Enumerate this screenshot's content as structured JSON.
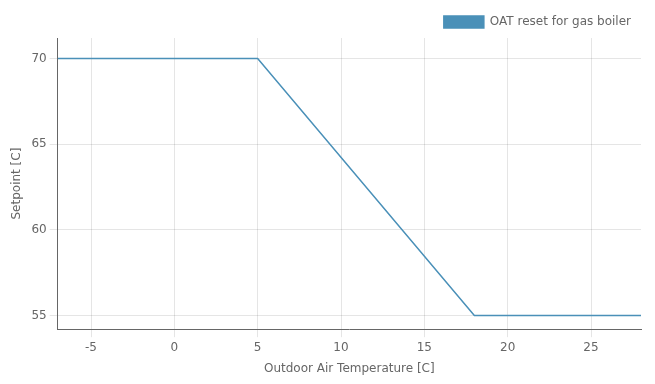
{
  "chart_data": {
    "type": "line",
    "x": [
      -7,
      5,
      18,
      28
    ],
    "series": [
      {
        "name": "OAT reset for gas boiler",
        "color": "#4a90b8",
        "values": [
          70,
          70,
          55,
          55
        ]
      }
    ],
    "xlabel": "Outdoor Air Temperature [C]",
    "ylabel": "Setpoint [C]",
    "xlim": [
      -7,
      28
    ],
    "ylim": [
      54.2,
      71.2
    ],
    "xticks": [
      -5,
      0,
      5,
      10,
      15,
      20,
      25
    ],
    "yticks": [
      55,
      60,
      65,
      70
    ],
    "grid": true,
    "legend": "upper right"
  }
}
